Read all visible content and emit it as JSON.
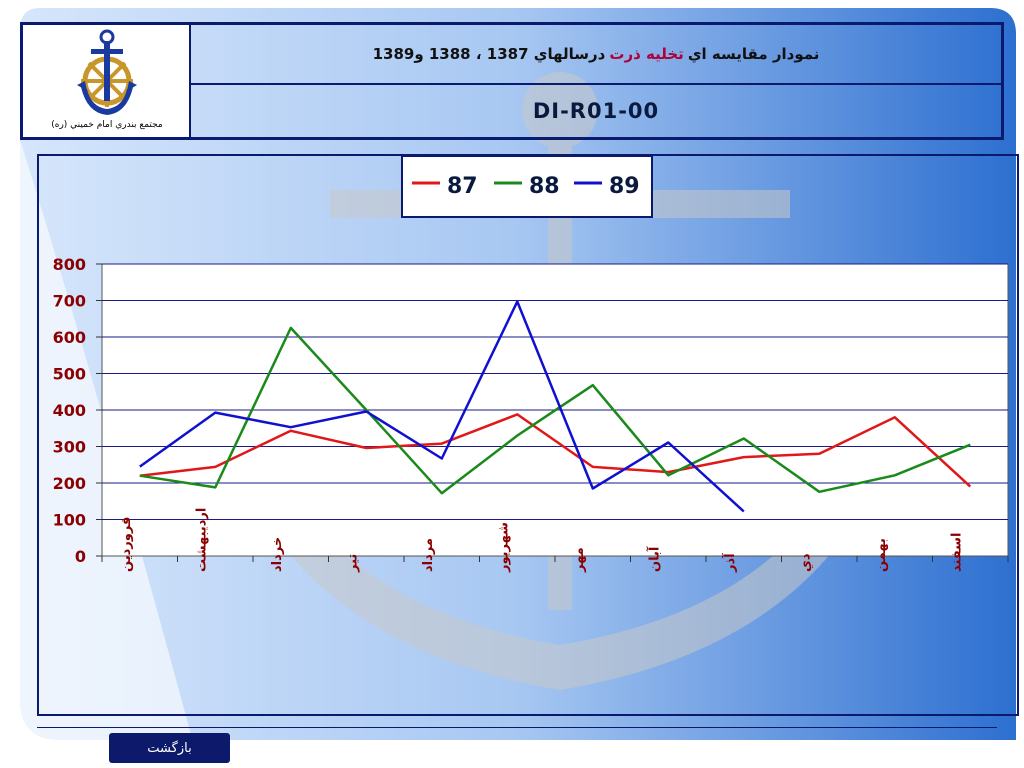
{
  "header": {
    "logo_caption": "مجتمع بندري امام خميني (ره)",
    "title_part1": "نمودار مقايسه اي",
    "title_highlight": "تخليه ذرت",
    "title_part2": "درسالهاي 1387 ، 1388 و1389",
    "code": "DI-R01-00"
  },
  "colors": {
    "frame": "#0a1a6e",
    "title_highlight": "#b0003a",
    "series_87": "#e0181a",
    "series_88": "#1a8a1a",
    "series_89": "#1010d0",
    "tick_text": "#8b0000"
  },
  "chart_data": {
    "type": "line",
    "title": "",
    "xlabel": "",
    "ylabel": "",
    "ylim": [
      0,
      800
    ],
    "yticks": [
      0,
      100,
      200,
      300,
      400,
      500,
      600,
      700,
      800
    ],
    "grid": true,
    "legend_position": "top-center",
    "categories": [
      "فروردين",
      "ارديبهشت",
      "خرداد",
      "تير",
      "مرداد",
      "شهريور",
      "مهر",
      "آبان",
      "آذر",
      "دي",
      "بهمن",
      "اسفند"
    ],
    "series": [
      {
        "name": "87",
        "color": "#e0181a",
        "values": [
          220,
          244,
          343,
          296,
          308,
          388,
          244,
          230,
          271,
          280,
          380,
          190
        ]
      },
      {
        "name": "88",
        "color": "#1a8a1a",
        "values": [
          220,
          188,
          625,
          400,
          172,
          330,
          468,
          221,
          322,
          176,
          221,
          305
        ]
      },
      {
        "name": "89",
        "color": "#1010d0",
        "values": [
          245,
          393,
          353,
          396,
          267,
          697,
          185,
          311,
          122,
          null,
          null,
          null
        ]
      }
    ]
  },
  "footer": {
    "back_label": "بازگشت"
  }
}
